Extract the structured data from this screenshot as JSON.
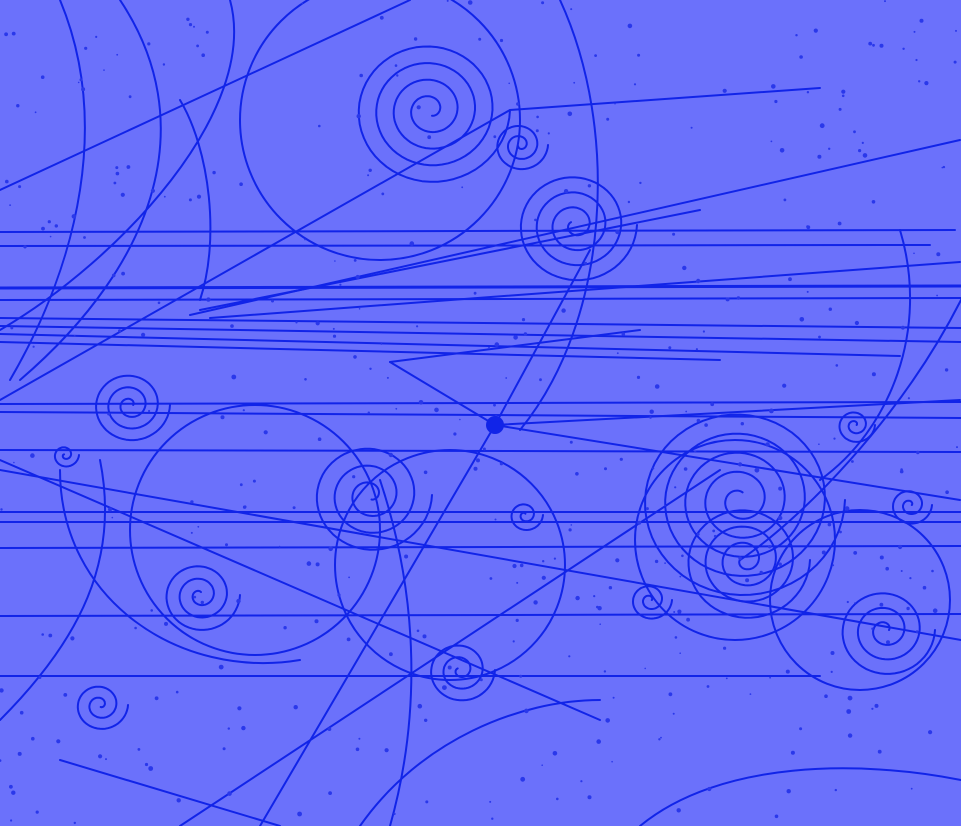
{
  "image": {
    "subject": "bubble-chamber-particle-tracks",
    "colors": {
      "background": "#6b71fb",
      "track": "#1124e8",
      "track_faint": "#2a38ea"
    }
  }
}
